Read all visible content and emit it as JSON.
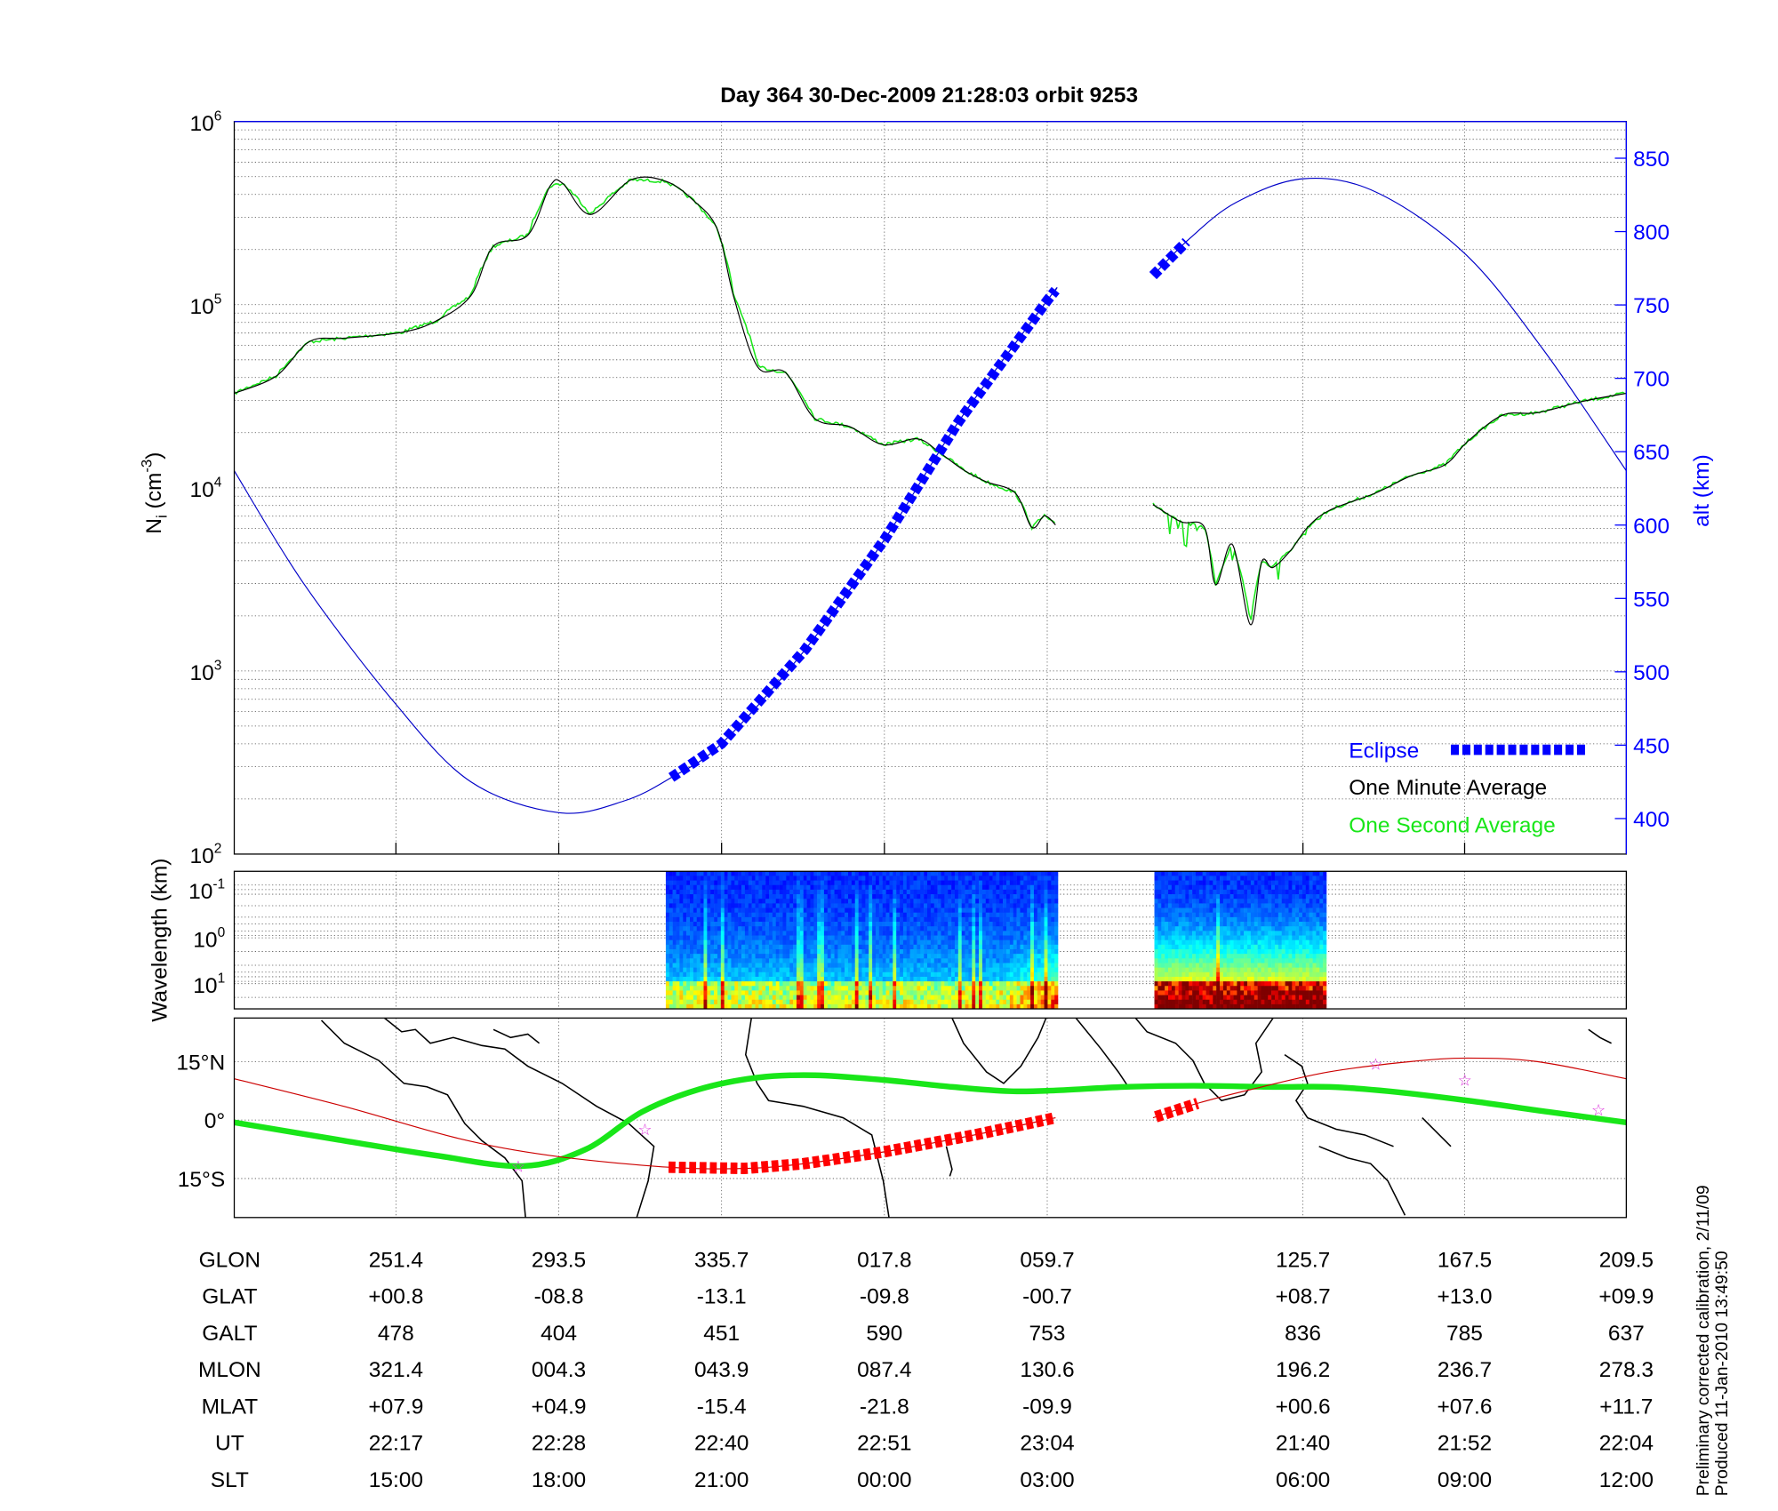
{
  "title": "Day 364  30-Dec-2009 21:28:03   orbit 9253",
  "colors": {
    "density_minute": "#000000",
    "density_second": "#19e619",
    "altitude": "#0000c8",
    "eclipse": "#0000ff",
    "track": "#cc0000",
    "track_eclipse": "#ff0000",
    "dip_equator": "#19e619",
    "star": "#dd33dd"
  },
  "chart_data": [
    {
      "type": "line",
      "title": "Day 364  30-Dec-2009 21:28:03   orbit 9253",
      "xlabel": "",
      "x_units": "percent of orbit segment shown",
      "ylabel": {
        "main": "N",
        "sub": "i",
        "unit_pre": " (cm",
        "unit_sup": "-3",
        "unit_post": ")"
      },
      "yscale": "log",
      "ylim": [
        100,
        1000000
      ],
      "yticks": [
        {
          "base": "10",
          "exp": "2",
          "value": 100
        },
        {
          "base": "10",
          "exp": "3",
          "value": 1000
        },
        {
          "base": "10",
          "exp": "4",
          "value": 10000
        },
        {
          "base": "10",
          "exp": "5",
          "value": 100000
        },
        {
          "base": "10",
          "exp": "6",
          "value": 1000000
        }
      ],
      "y2label": "alt (km)",
      "y2lim": [
        375,
        875
      ],
      "y2ticks": [
        "400",
        "450",
        "500",
        "550",
        "600",
        "650",
        "700",
        "750",
        "800",
        "850"
      ],
      "grid": true,
      "legend": {
        "placement": "bottom-right",
        "entries": [
          "Eclipse",
          "One Minute Average",
          "One Second Average"
        ]
      },
      "series": [
        {
          "name": "One Minute Average",
          "axis": "left",
          "segments": [
            [
              [
                0,
                32800
              ],
              [
                3.0,
                40700
              ],
              [
                5.4,
                62800
              ],
              [
                7.9,
                65600
              ],
              [
                12.0,
                70500
              ],
              [
                14.5,
                81500
              ],
              [
                17.0,
                112000
              ],
              [
                18.6,
                208000
              ],
              [
                21.1,
                240000
              ],
              [
                22.7,
                446000
              ],
              [
                23.6,
                459000
              ],
              [
                25.6,
                311000
              ],
              [
                28.5,
                480000
              ],
              [
                31.0,
                472000
              ],
              [
                33.0,
                370000
              ],
              [
                34.7,
                258000
              ],
              [
                35.9,
                109000
              ],
              [
                37.6,
                45700
              ],
              [
                39.6,
                42600
              ],
              [
                41.7,
                23900
              ],
              [
                44.2,
                21600
              ],
              [
                46.6,
                17200
              ],
              [
                49.1,
                18500
              ],
              [
                50.7,
                15500
              ],
              [
                52.4,
                12500
              ],
              [
                54.0,
                10800
              ],
              [
                56.1,
                9370
              ],
              [
                57.3,
                6080
              ],
              [
                58.2,
                7030
              ],
              [
                59.0,
                6270
              ]
            ],
            [
              [
                66.0,
                8110
              ],
              [
                68.0,
                6530
              ],
              [
                69.7,
                6080
              ],
              [
                70.5,
                2960
              ],
              [
                71.7,
                4900
              ],
              [
                73.0,
                1790
              ],
              [
                73.8,
                3940
              ],
              [
                74.6,
                3670
              ],
              [
                75.9,
                4560
              ],
              [
                77.1,
                6080
              ],
              [
                78.7,
                7550
              ],
              [
                82.0,
                9370
              ],
              [
                84.5,
                11600
              ],
              [
                87.0,
                13400
              ],
              [
                88.6,
                17900
              ],
              [
                91.1,
                24900
              ],
              [
                93.6,
                25700
              ],
              [
                96.9,
                29700
              ],
              [
                100,
                32800
              ]
            ]
          ]
        },
        {
          "name": "One Second Average",
          "axis": "left",
          "same_as": "One Minute Average",
          "noise": true
        },
        {
          "name": "Altitude",
          "axis": "right",
          "segments": [
            [
              [
                0,
                637
              ],
              [
                5,
                560
              ],
              [
                11.6,
                478
              ],
              [
                17,
                425
              ],
              [
                23.3,
                404
              ],
              [
                28,
                412
              ],
              [
                31.4,
                428
              ],
              [
                35,
                451
              ],
              [
                41,
                515
              ],
              [
                46.7,
                590
              ],
              [
                52,
                670
              ],
              [
                58.4,
                753
              ],
              [
                59,
                760
              ]
            ],
            [
              [
                66,
                770
              ],
              [
                68.6,
                795
              ],
              [
                72,
                820
              ],
              [
                76.8,
                836
              ],
              [
                82,
                827
              ],
              [
                88.4,
                785
              ],
              [
                94,
                720
              ],
              [
                100,
                637
              ]
            ]
          ]
        },
        {
          "name": "Eclipse",
          "axis": "right",
          "ranges": [
            [
              31.4,
              59
            ],
            [
              66,
              68.6
            ]
          ]
        }
      ]
    },
    {
      "type": "heatmap",
      "ylabel": "Wavelength (km)",
      "yticks": [
        {
          "base": "10",
          "exp": "-1"
        },
        {
          "base": "10",
          "exp": "0"
        },
        {
          "base": "10",
          "exp": "1"
        }
      ],
      "data_ranges": [
        [
          31.0,
          59.1
        ],
        [
          66.1,
          78.3
        ]
      ],
      "colormap": "jet"
    },
    {
      "type": "line",
      "subtype": "map",
      "yticks": [
        "15°N",
        "0°",
        "15°S"
      ],
      "ylim": [
        -25,
        26
      ],
      "series": [
        {
          "name": "Satellite track",
          "values": [
            [
              0,
              10.6
            ],
            [
              7.9,
              3.5
            ],
            [
              16.1,
              -4.7
            ],
            [
              22.7,
              -9.1
            ],
            [
              31.2,
              -12.1
            ],
            [
              36.7,
              -12.4
            ],
            [
              40.9,
              -11.2
            ],
            [
              46.6,
              -8.2
            ],
            [
              53.2,
              -3.8
            ],
            [
              59.0,
              0.6
            ],
            [
              66.0,
              0.6
            ],
            [
              69.3,
              4.4
            ],
            [
              73.8,
              8.5
            ],
            [
              78.7,
              12.4
            ],
            [
              84.5,
              15.0
            ],
            [
              88.6,
              15.9
            ],
            [
              93.6,
              15.0
            ],
            [
              100,
              10.6
            ]
          ]
        },
        {
          "name": "Eclipse track",
          "ranges": [
            [
              31.2,
              59.0
            ],
            [
              66.2,
              69.3
            ]
          ]
        },
        {
          "name": "Magnetic equator",
          "values": [
            [
              0,
              -0.6
            ],
            [
              7.9,
              -5.3
            ],
            [
              14.5,
              -9.1
            ],
            [
              20.7,
              -11.8
            ],
            [
              25.2,
              -7.6
            ],
            [
              29.3,
              2.1
            ],
            [
              33.4,
              7.9
            ],
            [
              37.6,
              10.9
            ],
            [
              41.7,
              11.5
            ],
            [
              46.6,
              10.3
            ],
            [
              51.6,
              8.5
            ],
            [
              55.7,
              7.4
            ],
            [
              59.0,
              7.6
            ],
            [
              63.9,
              8.5
            ],
            [
              68.9,
              8.8
            ],
            [
              74.6,
              8.5
            ],
            [
              78.7,
              8.5
            ],
            [
              82.9,
              7.4
            ],
            [
              88.6,
              5.0
            ],
            [
              94.4,
              2.1
            ],
            [
              100,
              -0.6
            ]
          ]
        },
        {
          "name": "Markers",
          "type": "scatter",
          "values": [
            [
              20.4,
              -11.8
            ],
            [
              29.5,
              -2.4
            ],
            [
              82.0,
              14.4
            ],
            [
              88.4,
              10.3
            ],
            [
              98.0,
              2.6
            ]
          ]
        }
      ]
    }
  ],
  "table": {
    "row_labels": [
      "GLON",
      "GLAT",
      "GALT",
      "MLON",
      "MLAT",
      "UT",
      "SLT"
    ],
    "rows": [
      [
        "251.4",
        "293.5",
        "335.7",
        "017.8",
        "059.7",
        "125.7",
        "167.5",
        "209.5"
      ],
      [
        "+00.8",
        "-08.8",
        "-13.1",
        "-09.8",
        "-00.7",
        "+08.7",
        "+13.0",
        "+09.9"
      ],
      [
        "478",
        "404",
        "451",
        "590",
        "753",
        "836",
        "785",
        "637"
      ],
      [
        "321.4",
        "004.3",
        "043.9",
        "087.4",
        "130.6",
        "196.2",
        "236.7",
        "278.3"
      ],
      [
        "+07.9",
        "+04.9",
        "-15.4",
        "-21.8",
        "-09.9",
        "+00.6",
        "+07.6",
        "+11.7"
      ],
      [
        "22:17",
        "22:28",
        "22:40",
        "22:51",
        "23:04",
        "21:40",
        "21:52",
        "22:04"
      ],
      [
        "15:00",
        "18:00",
        "21:00",
        "00:00",
        "03:00",
        "06:00",
        "09:00",
        "12:00"
      ]
    ]
  },
  "footer": {
    "line1": "Preliminary corrected calibration, 2/11/09",
    "line2": "Produced 11-Jan-2010 13:49:50"
  }
}
